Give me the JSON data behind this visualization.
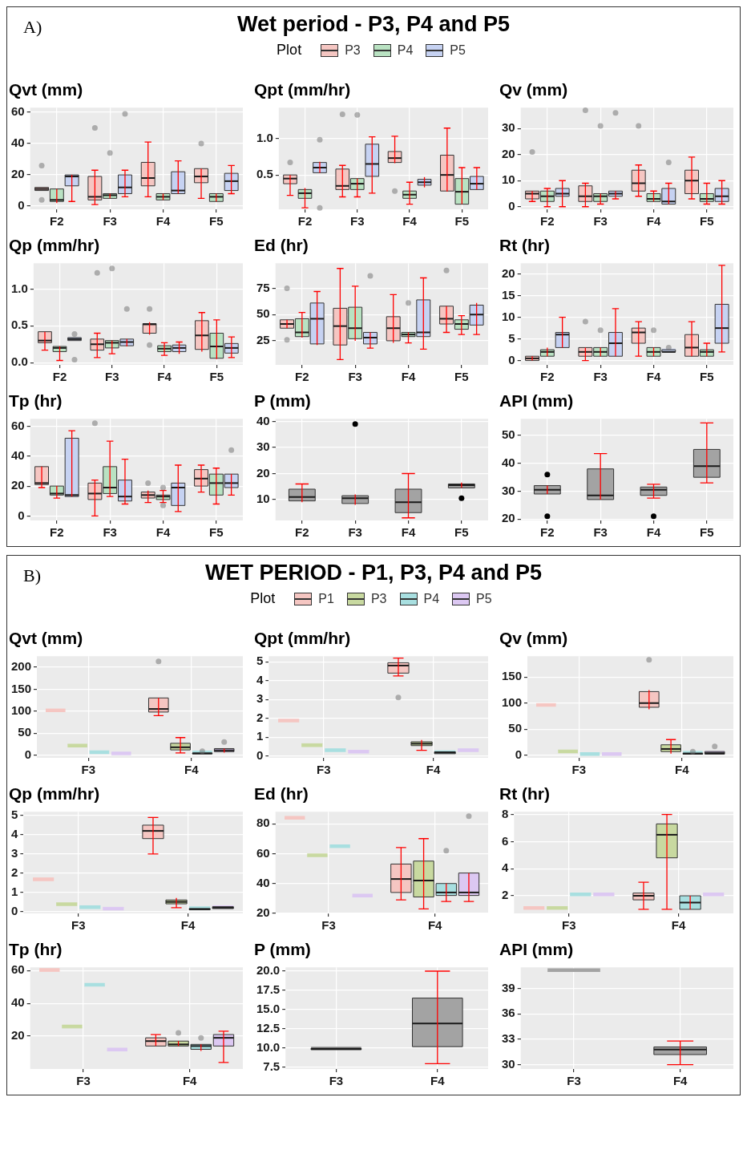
{
  "chart_data": [
    {
      "type": "other",
      "title": "Wet period - P3, P4 and P5",
      "annotations": [
        "A)"
      ],
      "legend_title": "Plot",
      "legend": "top",
      "series": [
        {
          "name": "P3",
          "color": "#f5c6c2"
        },
        {
          "name": "P4",
          "color": "#b9e2c2"
        },
        {
          "name": "P5",
          "color": "#c6d2f2"
        }
      ]
    },
    {
      "type": "box",
      "title": "Qvt (mm)",
      "categories": [
        "F2",
        "F3",
        "F4",
        "F5"
      ],
      "ylim": [
        -2,
        63
      ],
      "yticks": [
        0,
        20,
        40,
        60
      ],
      "grid": true,
      "series": [
        {
          "color": "#f5c6c2",
          "boxes": [
            {
              "low": 10,
              "q1": 10,
              "median": 11,
              "q3": 12,
              "high": 12,
              "outliers": [
                26,
                4
              ]
            },
            {
              "low": 1,
              "q1": 4,
              "median": 6,
              "q3": 19,
              "high": 23,
              "outliers": [
                50
              ]
            },
            {
              "low": 6,
              "q1": 13,
              "median": 18,
              "q3": 28,
              "high": 41
            },
            {
              "low": 5,
              "q1": 15,
              "median": 19,
              "q3": 24,
              "high": 24,
              "outliers": [
                40
              ]
            }
          ]
        },
        {
          "color": "#b9e2c2",
          "boxes": [
            {
              "low": 2,
              "q1": 3,
              "median": 4,
              "q3": 11,
              "high": 11
            },
            {
              "low": 5,
              "q1": 5,
              "median": 7,
              "q3": 8,
              "high": 8,
              "outliers": [
                34
              ]
            },
            {
              "low": 4,
              "q1": 4,
              "median": 6,
              "q3": 8,
              "high": 8
            },
            {
              "low": 3,
              "q1": 3,
              "median": 6,
              "q3": 8,
              "high": 8
            }
          ]
        },
        {
          "color": "#c6d2f2",
          "boxes": [
            {
              "low": 3,
              "q1": 13,
              "median": 19,
              "q3": 20,
              "high": 20
            },
            {
              "low": 6,
              "q1": 8,
              "median": 12,
              "q3": 20,
              "high": 23,
              "outliers": [
                59
              ]
            },
            {
              "low": 8,
              "q1": 8,
              "median": 10,
              "q3": 22,
              "high": 29
            },
            {
              "low": 8,
              "q1": 10,
              "median": 16,
              "q3": 21,
              "high": 26
            }
          ]
        }
      ]
    },
    {
      "type": "box",
      "title": "Qpt (mm/hr)",
      "categories": [
        "F2",
        "F3",
        "F4",
        "F5"
      ],
      "ylim": [
        0.03,
        1.42
      ],
      "yticks": [
        0.5,
        {
          "value": 1,
          "label": "1.0"
        }
      ],
      "grid": true,
      "series": [
        {
          "color": "#f5c6c2",
          "boxes": [
            {
              "low": 0.22,
              "q1": 0.38,
              "median": 0.45,
              "q3": 0.5,
              "high": 0.5,
              "outliers": [
                0.67
              ]
            },
            {
              "low": 0.2,
              "q1": 0.3,
              "median": 0.35,
              "q3": 0.58,
              "high": 0.63,
              "outliers": [
                1.33
              ]
            },
            {
              "low": 0.66,
              "q1": 0.67,
              "median": 0.73,
              "q3": 0.82,
              "high": 1.03,
              "outliers": [
                0.28
              ]
            },
            {
              "low": 0.27,
              "q1": 0.28,
              "median": 0.5,
              "q3": 0.77,
              "high": 1.14
            }
          ]
        },
        {
          "color": "#b9e2c2",
          "boxes": [
            {
              "low": 0.05,
              "q1": 0.18,
              "median": 0.25,
              "q3": 0.3,
              "high": 0.32
            },
            {
              "low": 0.2,
              "q1": 0.3,
              "median": 0.38,
              "q3": 0.45,
              "high": 0.45,
              "outliers": [
                1.32
              ]
            },
            {
              "low": 0.1,
              "q1": 0.18,
              "median": 0.23,
              "q3": 0.28,
              "high": 0.4
            },
            {
              "low": 0.1,
              "q1": 0.1,
              "median": 0.27,
              "q3": 0.45,
              "high": 0.6
            }
          ]
        },
        {
          "color": "#c6d2f2",
          "boxes": [
            {
              "low": 0.53,
              "q1": 0.53,
              "median": 0.6,
              "q3": 0.67,
              "high": 0.68,
              "outliers": [
                0.98,
                0.05
              ]
            },
            {
              "low": 0.25,
              "q1": 0.48,
              "median": 0.65,
              "q3": 0.92,
              "high": 1.02
            },
            {
              "low": 0.33,
              "q1": 0.36,
              "median": 0.4,
              "q3": 0.44,
              "high": 0.47
            },
            {
              "low": 0.3,
              "q1": 0.3,
              "median": 0.38,
              "q3": 0.48,
              "high": 0.6
            }
          ]
        }
      ]
    },
    {
      "type": "box",
      "title": "Qv (mm)",
      "categories": [
        "F2",
        "F3",
        "F4",
        "F5"
      ],
      "ylim": [
        -1,
        38
      ],
      "yticks": [
        0,
        10,
        20,
        30
      ],
      "grid": true,
      "series": [
        {
          "color": "#f5c6c2",
          "boxes": [
            {
              "low": 2,
              "q1": 3,
              "median": 5,
              "q3": 6,
              "high": 6,
              "outliers": [
                21
              ]
            },
            {
              "low": 0,
              "q1": 2,
              "median": 4,
              "q3": 8,
              "high": 9,
              "outliers": [
                37
              ]
            },
            {
              "low": 4,
              "q1": 6,
              "median": 9,
              "q3": 14,
              "high": 16,
              "outliers": [
                31
              ]
            },
            {
              "low": 3,
              "q1": 5,
              "median": 10,
              "q3": 14,
              "high": 19
            }
          ]
        },
        {
          "color": "#b9e2c2",
          "boxes": [
            {
              "low": 0,
              "q1": 2,
              "median": 4,
              "q3": 6,
              "high": 7
            },
            {
              "low": 1,
              "q1": 2,
              "median": 4,
              "q3": 5,
              "high": 5,
              "outliers": [
                31
              ]
            },
            {
              "low": 2,
              "q1": 2,
              "median": 3,
              "q3": 5,
              "high": 6
            },
            {
              "low": 1,
              "q1": 2,
              "median": 3,
              "q3": 5,
              "high": 9
            }
          ]
        },
        {
          "color": "#c6d2f2",
          "boxes": [
            {
              "low": 0,
              "q1": 4,
              "median": 5,
              "q3": 7,
              "high": 10
            },
            {
              "low": 3,
              "q1": 4,
              "median": 5,
              "q3": 6,
              "high": 6,
              "outliers": [
                36
              ]
            },
            {
              "low": 1,
              "q1": 1,
              "median": 2,
              "q3": 7,
              "high": 9,
              "outliers": [
                17
              ]
            },
            {
              "low": 1,
              "q1": 2,
              "median": 4,
              "q3": 7,
              "high": 10
            }
          ]
        }
      ]
    },
    {
      "type": "box",
      "title": "Qp (mm/hr)",
      "categories": [
        "F2",
        "F3",
        "F4",
        "F5"
      ],
      "ylim": [
        -0.03,
        1.35
      ],
      "yticks": [
        {
          "value": 0,
          "label": "0.0"
        },
        0.5,
        {
          "value": 1,
          "label": "1.0"
        }
      ],
      "grid": true,
      "series": [
        {
          "color": "#f5c6c2",
          "boxes": [
            {
              "low": 0.17,
              "q1": 0.27,
              "median": 0.3,
              "q3": 0.42,
              "high": 0.42
            },
            {
              "low": 0.07,
              "q1": 0.17,
              "median": 0.25,
              "q3": 0.32,
              "high": 0.4,
              "outliers": [
                1.22
              ]
            },
            {
              "low": 0.38,
              "q1": 0.4,
              "median": 0.52,
              "q3": 0.53,
              "high": 0.55,
              "outliers": [
                0.73,
                0.24
              ]
            },
            {
              "low": 0.15,
              "q1": 0.18,
              "median": 0.37,
              "q3": 0.57,
              "high": 0.68
            }
          ]
        },
        {
          "color": "#b9e2c2",
          "boxes": [
            {
              "low": 0.03,
              "q1": 0.15,
              "median": 0.2,
              "q3": 0.22,
              "high": 0.22
            },
            {
              "low": 0.12,
              "q1": 0.2,
              "median": 0.27,
              "q3": 0.3,
              "high": 0.3,
              "outliers": [
                1.28
              ]
            },
            {
              "low": 0.1,
              "q1": 0.15,
              "median": 0.19,
              "q3": 0.23,
              "high": 0.27
            },
            {
              "low": 0.05,
              "q1": 0.06,
              "median": 0.22,
              "q3": 0.4,
              "high": 0.58
            }
          ]
        },
        {
          "color": "#c6d2f2",
          "boxes": [
            {
              "low": 0.3,
              "q1": 0.3,
              "median": 0.32,
              "q3": 0.34,
              "high": 0.34,
              "outliers": [
                0.39,
                0.04
              ]
            },
            {
              "low": 0.22,
              "q1": 0.23,
              "median": 0.28,
              "q3": 0.32,
              "high": 0.32,
              "outliers": [
                0.73
              ]
            },
            {
              "low": 0.12,
              "q1": 0.15,
              "median": 0.2,
              "q3": 0.24,
              "high": 0.28
            },
            {
              "low": 0.07,
              "q1": 0.13,
              "median": 0.2,
              "q3": 0.26,
              "high": 0.35
            }
          ]
        }
      ]
    },
    {
      "type": "box",
      "title": "Ed (hr)",
      "categories": [
        "F2",
        "F3",
        "F4",
        "F5"
      ],
      "ylim": [
        2,
        99
      ],
      "yticks": [
        25,
        50,
        75
      ],
      "grid": true,
      "series": [
        {
          "color": "#f5c6c2",
          "boxes": [
            {
              "low": 37,
              "q1": 37,
              "median": 41,
              "q3": 45,
              "high": 45,
              "outliers": [
                75,
                26
              ]
            },
            {
              "low": 7,
              "q1": 21,
              "median": 39,
              "q3": 56,
              "high": 94
            },
            {
              "low": 23,
              "q1": 25,
              "median": 37,
              "q3": 48,
              "high": 69
            },
            {
              "low": 33,
              "q1": 41,
              "median": 46,
              "q3": 58,
              "high": 58,
              "outliers": [
                92
              ]
            }
          ]
        },
        {
          "color": "#b9e2c2",
          "boxes": [
            {
              "low": 28,
              "q1": 29,
              "median": 33,
              "q3": 46,
              "high": 52
            },
            {
              "low": 25,
              "q1": 27,
              "median": 37,
              "q3": 57,
              "high": 77
            },
            {
              "low": 23,
              "q1": 29,
              "median": 31,
              "q3": 33,
              "high": 33,
              "outliers": [
                61
              ]
            },
            {
              "low": 31,
              "q1": 36,
              "median": 41,
              "q3": 45,
              "high": 49
            }
          ]
        },
        {
          "color": "#c6d2f2",
          "boxes": [
            {
              "low": 21,
              "q1": 22,
              "median": 46,
              "q3": 61,
              "high": 72
            },
            {
              "low": 18,
              "q1": 22,
              "median": 28,
              "q3": 33,
              "high": 33,
              "outliers": [
                87
              ]
            },
            {
              "low": 17,
              "q1": 29,
              "median": 33,
              "q3": 64,
              "high": 85
            },
            {
              "low": 31,
              "q1": 40,
              "median": 50,
              "q3": 59,
              "high": 61
            }
          ]
        }
      ]
    },
    {
      "type": "box",
      "title": "Rt (hr)",
      "categories": [
        "F2",
        "F3",
        "F4",
        "F5"
      ],
      "ylim": [
        -1,
        22.5
      ],
      "yticks": [
        0,
        5,
        10,
        15,
        20
      ],
      "grid": true,
      "series": [
        {
          "color": "#f5c6c2",
          "boxes": [
            {
              "low": 0,
              "q1": 0,
              "median": 0.5,
              "q3": 1,
              "high": 1
            },
            {
              "low": 0,
              "q1": 1,
              "median": 2,
              "q3": 3,
              "high": 3,
              "outliers": [
                9
              ]
            },
            {
              "low": 1,
              "q1": 4,
              "median": 6.5,
              "q3": 7.5,
              "high": 9
            },
            {
              "low": 1,
              "q1": 1,
              "median": 3,
              "q3": 6,
              "high": 9
            }
          ]
        },
        {
          "color": "#b9e2c2",
          "boxes": [
            {
              "low": 1,
              "q1": 1,
              "median": 2,
              "q3": 2.5,
              "high": 3
            },
            {
              "low": 1,
              "q1": 1,
              "median": 2,
              "q3": 3,
              "high": 3,
              "outliers": [
                7
              ]
            },
            {
              "low": 1,
              "q1": 1,
              "median": 2,
              "q3": 3,
              "high": 3,
              "outliers": [
                7
              ]
            },
            {
              "low": 1,
              "q1": 1,
              "median": 2,
              "q3": 2.5,
              "high": 4
            }
          ]
        },
        {
          "color": "#c6d2f2",
          "boxes": [
            {
              "low": 3,
              "q1": 3,
              "median": 6,
              "q3": 6.5,
              "high": 10
            },
            {
              "low": 1,
              "q1": 1,
              "median": 4,
              "q3": 6.5,
              "high": 12
            },
            {
              "low": 2,
              "q1": 2,
              "median": 2,
              "q3": 2.5,
              "high": 2.5,
              "outliers": [
                3
              ]
            },
            {
              "low": 2,
              "q1": 4,
              "median": 7.5,
              "q3": 13,
              "high": 22
            }
          ]
        }
      ]
    },
    {
      "type": "box",
      "title": "Tp (hr)",
      "categories": [
        "F2",
        "F3",
        "F4",
        "F5"
      ],
      "ylim": [
        -3,
        65
      ],
      "yticks": [
        0,
        20,
        40,
        60
      ],
      "grid": true,
      "series": [
        {
          "color": "#f5c6c2",
          "boxes": [
            {
              "low": 19,
              "q1": 21,
              "median": 22,
              "q3": 33,
              "high": 33
            },
            {
              "low": 0,
              "q1": 11,
              "median": 15,
              "q3": 22,
              "high": 24,
              "outliers": [
                62
              ]
            },
            {
              "low": 9,
              "q1": 12,
              "median": 14,
              "q3": 16,
              "high": 17,
              "outliers": [
                22
              ]
            },
            {
              "low": 16,
              "q1": 20,
              "median": 25,
              "q3": 31,
              "high": 34
            }
          ]
        },
        {
          "color": "#b9e2c2",
          "boxes": [
            {
              "low": 12,
              "q1": 14,
              "median": 15,
              "q3": 20,
              "high": 20
            },
            {
              "low": 13,
              "q1": 15,
              "median": 19,
              "q3": 33,
              "high": 50
            },
            {
              "low": 9,
              "q1": 11,
              "median": 13,
              "q3": 14,
              "high": 17,
              "outliers": [
                19,
                7
              ]
            },
            {
              "low": 8,
              "q1": 14,
              "median": 22,
              "q3": 28,
              "high": 32
            }
          ]
        },
        {
          "color": "#c6d2f2",
          "boxes": [
            {
              "low": 13,
              "q1": 13,
              "median": 14,
              "q3": 52,
              "high": 57
            },
            {
              "low": 8,
              "q1": 10,
              "median": 13,
              "q3": 24,
              "high": 38
            },
            {
              "low": 3,
              "q1": 7,
              "median": 19,
              "q3": 22,
              "high": 34
            },
            {
              "low": 14,
              "q1": 19,
              "median": 22,
              "q3": 28,
              "high": 28,
              "outliers": [
                44
              ]
            }
          ]
        }
      ]
    },
    {
      "type": "box",
      "title": "P (mm)",
      "categories": [
        "F2",
        "F3",
        "F4",
        "F5"
      ],
      "ylim": [
        2,
        41
      ],
      "yticks": [
        10,
        20,
        30,
        40
      ],
      "grid": true,
      "series": [
        {
          "color": "#a3a3a3",
          "boxes": [
            {
              "low": 9,
              "q1": 9.5,
              "median": 11,
              "q3": 14,
              "high": 16
            },
            {
              "low": 8,
              "q1": 8.5,
              "median": 10.5,
              "q3": 11.5,
              "high": 12,
              "outliers": [
                39
              ]
            },
            {
              "low": 3,
              "q1": 5,
              "median": 9,
              "q3": 14,
              "high": 20
            },
            {
              "low": 14.5,
              "q1": 14.5,
              "median": 15.5,
              "q3": 16,
              "high": 16.5,
              "outliers": [
                10.5
              ]
            }
          ]
        }
      ]
    },
    {
      "type": "box",
      "title": "API (mm)",
      "categories": [
        "F2",
        "F3",
        "F4",
        "F5"
      ],
      "ylim": [
        19.5,
        56
      ],
      "yticks": [
        20,
        30,
        40,
        50
      ],
      "grid": true,
      "series": [
        {
          "color": "#a3a3a3",
          "boxes": [
            {
              "low": 29,
              "q1": 29,
              "median": 30.5,
              "q3": 32,
              "high": 32,
              "outliers": [
                36,
                21
              ]
            },
            {
              "low": 27,
              "q1": 27,
              "median": 28.5,
              "q3": 38,
              "high": 43.5
            },
            {
              "low": 27.5,
              "q1": 28.5,
              "median": 30.5,
              "q3": 31.5,
              "high": 32.5,
              "outliers": [
                21
              ]
            },
            {
              "low": 33,
              "q1": 35,
              "median": 39,
              "q3": 45,
              "high": 54.5
            }
          ]
        }
      ]
    },
    {
      "type": "other",
      "title": "WET PERIOD - P1, P3, P4 and P5",
      "annotations": [
        "B)"
      ],
      "legend_title": "Plot",
      "legend": "top",
      "series": [
        {
          "name": "P1",
          "color": "#f5c6c2"
        },
        {
          "name": "P3",
          "color": "#c8d9a0"
        },
        {
          "name": "P4",
          "color": "#a8dfe0"
        },
        {
          "name": "P5",
          "color": "#dcc8f2"
        }
      ]
    },
    {
      "type": "box",
      "title": "Qvt (mm)",
      "categories": [
        "F3",
        "F4"
      ],
      "ylim": [
        -6,
        225
      ],
      "yticks": [
        0,
        50,
        100,
        150,
        200
      ],
      "grid": true,
      "series": [
        {
          "color": "#f5c6c2",
          "boxes": [
            {
              "low": 105,
              "q1": 105,
              "median": 105,
              "q3": 105,
              "high": 105
            },
            {
              "low": 90,
              "q1": 98,
              "median": 105,
              "q3": 130,
              "high": 130,
              "outliers": [
                213
              ]
            }
          ]
        },
        {
          "color": "#c8d9a0",
          "boxes": [
            {
              "low": 25,
              "q1": 25,
              "median": 25,
              "q3": 25,
              "high": 25
            },
            {
              "low": 5,
              "q1": 12,
              "median": 18,
              "q3": 27,
              "high": 40
            }
          ]
        },
        {
          "color": "#a8dfe0",
          "boxes": [
            {
              "low": 10,
              "q1": 10,
              "median": 10,
              "q3": 10,
              "high": 10
            },
            {
              "low": 2,
              "q1": 3,
              "median": 4,
              "q3": 5,
              "high": 6,
              "outliers": [
                9
              ]
            }
          ]
        },
        {
          "color": "#dcc8f2",
          "boxes": [
            {
              "low": 7,
              "q1": 7,
              "median": 7,
              "q3": 7,
              "high": 7
            },
            {
              "low": 6,
              "q1": 8,
              "median": 11,
              "q3": 15,
              "high": 15,
              "outliers": [
                30
              ]
            }
          ]
        }
      ]
    },
    {
      "type": "box",
      "title": "Qpt (mm/hr)",
      "categories": [
        "F3",
        "F4"
      ],
      "ylim": [
        -0.1,
        5.3
      ],
      "yticks": [
        0,
        1,
        2,
        3,
        4,
        5
      ],
      "grid": true,
      "series": [
        {
          "color": "#f5c6c2",
          "boxes": [
            {
              "low": 1.95,
              "q1": 1.95,
              "median": 1.95,
              "q3": 1.95,
              "high": 1.95
            },
            {
              "low": 4.25,
              "q1": 4.4,
              "median": 4.8,
              "q3": 4.95,
              "high": 5.2,
              "outliers": [
                3.1
              ]
            }
          ]
        },
        {
          "color": "#c8d9a0",
          "boxes": [
            {
              "low": 0.65,
              "q1": 0.65,
              "median": 0.65,
              "q3": 0.65,
              "high": 0.65
            },
            {
              "low": 0.3,
              "q1": 0.55,
              "median": 0.65,
              "q3": 0.75,
              "high": 0.85
            }
          ]
        },
        {
          "color": "#a8dfe0",
          "boxes": [
            {
              "low": 0.38,
              "q1": 0.38,
              "median": 0.38,
              "q3": 0.38,
              "high": 0.38
            },
            {
              "low": 0.1,
              "q1": 0.12,
              "median": 0.18,
              "q3": 0.22,
              "high": 0.25
            }
          ]
        },
        {
          "color": "#dcc8f2",
          "boxes": [
            {
              "low": 0.3,
              "q1": 0.3,
              "median": 0.3,
              "q3": 0.3,
              "high": 0.3
            },
            {
              "low": 0.38,
              "q1": 0.38,
              "median": 0.38,
              "q3": 0.38,
              "high": 0.38
            }
          ]
        }
      ]
    },
    {
      "type": "box",
      "title": "Qv (mm)",
      "categories": [
        "F3",
        "F4"
      ],
      "ylim": [
        -5,
        190
      ],
      "yticks": [
        0,
        50,
        100,
        150
      ],
      "grid": true,
      "series": [
        {
          "color": "#f5c6c2",
          "boxes": [
            {
              "low": 99,
              "q1": 99,
              "median": 99,
              "q3": 99,
              "high": 99
            },
            {
              "low": 88,
              "q1": 92,
              "median": 100,
              "q3": 122,
              "high": 125,
              "outliers": [
                183
              ]
            }
          ]
        },
        {
          "color": "#c8d9a0",
          "boxes": [
            {
              "low": 10,
              "q1": 10,
              "median": 10,
              "q3": 10,
              "high": 10
            },
            {
              "low": 3,
              "q1": 7,
              "median": 12,
              "q3": 20,
              "high": 30
            }
          ]
        },
        {
          "color": "#a8dfe0",
          "boxes": [
            {
              "low": 5,
              "q1": 5,
              "median": 5,
              "q3": 5,
              "high": 5
            },
            {
              "low": 1,
              "q1": 2,
              "median": 3,
              "q3": 4,
              "high": 5,
              "outliers": [
                7
              ]
            }
          ]
        },
        {
          "color": "#dcc8f2",
          "boxes": [
            {
              "low": 5,
              "q1": 5,
              "median": 5,
              "q3": 5,
              "high": 5
            },
            {
              "low": 2,
              "q1": 2,
              "median": 4,
              "q3": 7,
              "high": 7,
              "outliers": [
                17
              ]
            }
          ]
        }
      ]
    },
    {
      "type": "box",
      "title": "Qp (mm/hr)",
      "categories": [
        "F3",
        "F4"
      ],
      "ylim": [
        -0.1,
        5.2
      ],
      "yticks": [
        0,
        1,
        2,
        3,
        4,
        5
      ],
      "grid": true,
      "series": [
        {
          "color": "#f5c6c2",
          "boxes": [
            {
              "low": 1.75,
              "q1": 1.75,
              "median": 1.75,
              "q3": 1.75,
              "high": 1.75
            },
            {
              "low": 3,
              "q1": 3.8,
              "median": 4.2,
              "q3": 4.5,
              "high": 4.9
            }
          ]
        },
        {
          "color": "#c8d9a0",
          "boxes": [
            {
              "low": 0.45,
              "q1": 0.45,
              "median": 0.45,
              "q3": 0.45,
              "high": 0.45
            },
            {
              "low": 0.2,
              "q1": 0.4,
              "median": 0.5,
              "q3": 0.6,
              "high": 0.7
            }
          ]
        },
        {
          "color": "#a8dfe0",
          "boxes": [
            {
              "low": 0.3,
              "q1": 0.3,
              "median": 0.3,
              "q3": 0.3,
              "high": 0.3
            },
            {
              "low": 0.1,
              "q1": 0.1,
              "median": 0.12,
              "q3": 0.15,
              "high": 0.15
            }
          ]
        },
        {
          "color": "#dcc8f2",
          "boxes": [
            {
              "low": 0.22,
              "q1": 0.22,
              "median": 0.22,
              "q3": 0.22,
              "high": 0.22
            },
            {
              "low": 0.15,
              "q1": 0.15,
              "median": 0.2,
              "q3": 0.25,
              "high": 0.25
            }
          ]
        }
      ]
    },
    {
      "type": "box",
      "title": "Ed (hr)",
      "categories": [
        "F3",
        "F4"
      ],
      "ylim": [
        20,
        88
      ],
      "yticks": [
        20,
        40,
        60,
        80
      ],
      "grid": true,
      "series": [
        {
          "color": "#f5c6c2",
          "boxes": [
            {
              "low": 83,
              "q1": 83,
              "median": 83,
              "q3": 83,
              "high": 83
            },
            {
              "low": 29,
              "q1": 34,
              "median": 43,
              "q3": 53,
              "high": 64
            }
          ]
        },
        {
          "color": "#c8d9a0",
          "boxes": [
            {
              "low": 58,
              "q1": 58,
              "median": 58,
              "q3": 58,
              "high": 58
            },
            {
              "low": 23,
              "q1": 31,
              "median": 42,
              "q3": 55,
              "high": 70
            }
          ]
        },
        {
          "color": "#a8dfe0",
          "boxes": [
            {
              "low": 64,
              "q1": 64,
              "median": 64,
              "q3": 64,
              "high": 64
            },
            {
              "low": 28,
              "q1": 32,
              "median": 34,
              "q3": 40,
              "high": 40,
              "outliers": [
                62
              ]
            }
          ]
        },
        {
          "color": "#dcc8f2",
          "boxes": [
            {
              "low": 31,
              "q1": 31,
              "median": 31,
              "q3": 31,
              "high": 31
            },
            {
              "low": 28,
              "q1": 32,
              "median": 34,
              "q3": 47,
              "high": 47,
              "outliers": [
                85
              ]
            }
          ]
        }
      ]
    },
    {
      "type": "box",
      "title": "Rt (hr)",
      "categories": [
        "F3",
        "F4"
      ],
      "ylim": [
        0.7,
        8.2
      ],
      "yticks": [
        2,
        4,
        6,
        8
      ],
      "grid": true,
      "series": [
        {
          "color": "#f5c6c2",
          "boxes": [
            {
              "low": 1,
              "q1": 1,
              "median": 1,
              "q3": 1,
              "high": 1
            },
            {
              "low": 1,
              "q1": 1.7,
              "median": 2,
              "q3": 2.2,
              "high": 3
            }
          ]
        },
        {
          "color": "#c8d9a0",
          "boxes": [
            {
              "low": 1,
              "q1": 1,
              "median": 1,
              "q3": 1,
              "high": 1
            },
            {
              "low": 1,
              "q1": 4.8,
              "median": 6.5,
              "q3": 7.3,
              "high": 8
            }
          ]
        },
        {
          "color": "#a8dfe0",
          "boxes": [
            {
              "low": 2,
              "q1": 2,
              "median": 2,
              "q3": 2,
              "high": 2
            },
            {
              "low": 1,
              "q1": 1,
              "median": 1.5,
              "q3": 2,
              "high": 2
            }
          ]
        },
        {
          "color": "#dcc8f2",
          "boxes": [
            {
              "low": 2,
              "q1": 2,
              "median": 2,
              "q3": 2,
              "high": 2
            },
            {
              "low": 2,
              "q1": 2,
              "median": 2,
              "q3": 2,
              "high": 2
            }
          ]
        }
      ]
    },
    {
      "type": "box",
      "title": "Tp (hr)",
      "categories": [
        "F3",
        "F4"
      ],
      "ylim": [
        0,
        62
      ],
      "yticks": [
        20,
        40,
        60
      ],
      "grid": true,
      "series": [
        {
          "color": "#f5c6c2",
          "boxes": [
            {
              "low": 59.5,
              "q1": 59.5,
              "median": 59.5,
              "q3": 59.5,
              "high": 59.5
            },
            {
              "low": 14,
              "q1": 14,
              "median": 17,
              "q3": 19,
              "high": 21
            }
          ]
        },
        {
          "color": "#c8d9a0",
          "boxes": [
            {
              "low": 25,
              "q1": 25,
              "median": 25,
              "q3": 25,
              "high": 25
            },
            {
              "low": 14,
              "q1": 14,
              "median": 15,
              "q3": 17,
              "high": 17,
              "outliers": [
                22
              ]
            }
          ]
        },
        {
          "color": "#a8dfe0",
          "boxes": [
            {
              "low": 50.5,
              "q1": 50.5,
              "median": 50.5,
              "q3": 50.5,
              "high": 50.5
            },
            {
              "low": 11,
              "q1": 12,
              "median": 14,
              "q3": 15,
              "high": 15,
              "outliers": [
                19
              ]
            }
          ]
        },
        {
          "color": "#dcc8f2",
          "boxes": [
            {
              "low": 11,
              "q1": 11,
              "median": 11,
              "q3": 11,
              "high": 11
            },
            {
              "low": 4,
              "q1": 14,
              "median": 19,
              "q3": 21,
              "high": 23
            }
          ]
        }
      ]
    },
    {
      "type": "box",
      "title": "P (mm)",
      "categories": [
        "F3",
        "F4"
      ],
      "ylim": [
        7.3,
        20.5
      ],
      "yticks": [
        7.5,
        {
          "value": 10,
          "label": "10.0"
        },
        12.5,
        {
          "value": 15,
          "label": "15.0"
        },
        17.5,
        {
          "value": 20,
          "label": "20.0"
        }
      ],
      "grid": true,
      "series": [
        {
          "color": "#a3a3a3",
          "boxes": [
            {
              "low": 9.8,
              "q1": 9.8,
              "median": 9.9,
              "q3": 10,
              "high": 10
            },
            {
              "low": 8,
              "q1": 10.2,
              "median": 13.2,
              "q3": 16.5,
              "high": 20
            }
          ]
        }
      ]
    },
    {
      "type": "box",
      "title": "API (mm)",
      "categories": [
        "F3",
        "F4"
      ],
      "ylim": [
        29.5,
        41.5
      ],
      "yticks": [
        30,
        33,
        36,
        39
      ],
      "grid": true,
      "series": [
        {
          "color": "#a3a3a3",
          "boxes": [
            {
              "low": 41,
              "q1": 41,
              "median": 41,
              "q3": 41,
              "high": 41
            },
            {
              "low": 30,
              "q1": 31.2,
              "median": 31.8,
              "q3": 32.1,
              "high": 32.8
            }
          ]
        }
      ]
    }
  ]
}
